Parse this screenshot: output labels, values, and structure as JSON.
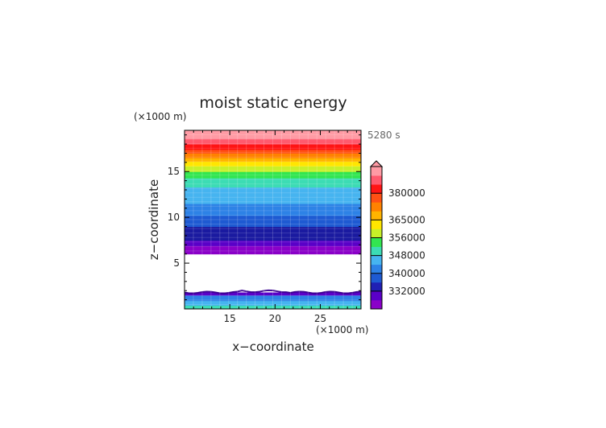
{
  "chart_data": {
    "type": "heatmap",
    "title": "moist static energy",
    "time_label": "5280 s",
    "xlabel": "x−coordinate",
    "ylabel": "z−coordinate",
    "x_unit_label": "(×1000 m)",
    "y_unit_label": "(×1000 m)",
    "xlim": [
      10,
      29.5
    ],
    "ylim": [
      0,
      19.5
    ],
    "x_ticks": [
      15,
      20,
      25
    ],
    "y_ticks": [
      5,
      10,
      15
    ],
    "colorbar_labels": [
      "380000",
      "365000",
      "356000",
      "348000",
      "340000",
      "332000"
    ],
    "colorbar_colors": [
      "#8a00c8",
      "#5a00c8",
      "#2020b4",
      "#1e5ad2",
      "#2d82e6",
      "#46b4f0",
      "#3cdcb4",
      "#32e650",
      "#c8f028",
      "#ffe600",
      "#ffb400",
      "#ff8200",
      "#ff5014",
      "#ff1414",
      "#ff5a6e",
      "#ff9ba5"
    ],
    "upper_bands": [
      {
        "z0": 6.0,
        "z1": 6.9,
        "color": "#8a00c8"
      },
      {
        "z0": 6.9,
        "z1": 7.5,
        "color": "#5a00c8"
      },
      {
        "z0": 7.5,
        "z1": 9.0,
        "color": "#1a1aa0"
      },
      {
        "z0": 9.0,
        "z1": 10.2,
        "color": "#1e5ad2"
      },
      {
        "z0": 10.2,
        "z1": 11.5,
        "color": "#2d82e6"
      },
      {
        "z0": 11.5,
        "z1": 13.3,
        "color": "#46b4f0"
      },
      {
        "z0": 13.3,
        "z1": 14.3,
        "color": "#3cdcb4"
      },
      {
        "z0": 14.3,
        "z1": 15.0,
        "color": "#32e650"
      },
      {
        "z0": 15.0,
        "z1": 15.6,
        "color": "#c8f028"
      },
      {
        "z0": 15.6,
        "z1": 16.1,
        "color": "#ffe600"
      },
      {
        "z0": 16.1,
        "z1": 16.5,
        "color": "#ffb400"
      },
      {
        "z0": 16.5,
        "z1": 17.0,
        "color": "#ff8200"
      },
      {
        "z0": 17.0,
        "z1": 17.4,
        "color": "#ff5014"
      },
      {
        "z0": 17.4,
        "z1": 18.0,
        "color": "#ff1414"
      },
      {
        "z0": 18.0,
        "z1": 18.6,
        "color": "#ff5a6e"
      },
      {
        "z0": 18.6,
        "z1": 19.5,
        "color": "#ff9ba5"
      }
    ],
    "lower_bands": [
      {
        "z0": 0.0,
        "z1": 0.4,
        "color": "#3cdcb4"
      },
      {
        "z0": 0.4,
        "z1": 0.9,
        "color": "#46b4f0"
      },
      {
        "z0": 0.9,
        "z1": 1.5,
        "color": "#2d82e6"
      },
      {
        "z0": 1.5,
        "z1": 1.8,
        "color": "#5a00c8"
      }
    ]
  }
}
